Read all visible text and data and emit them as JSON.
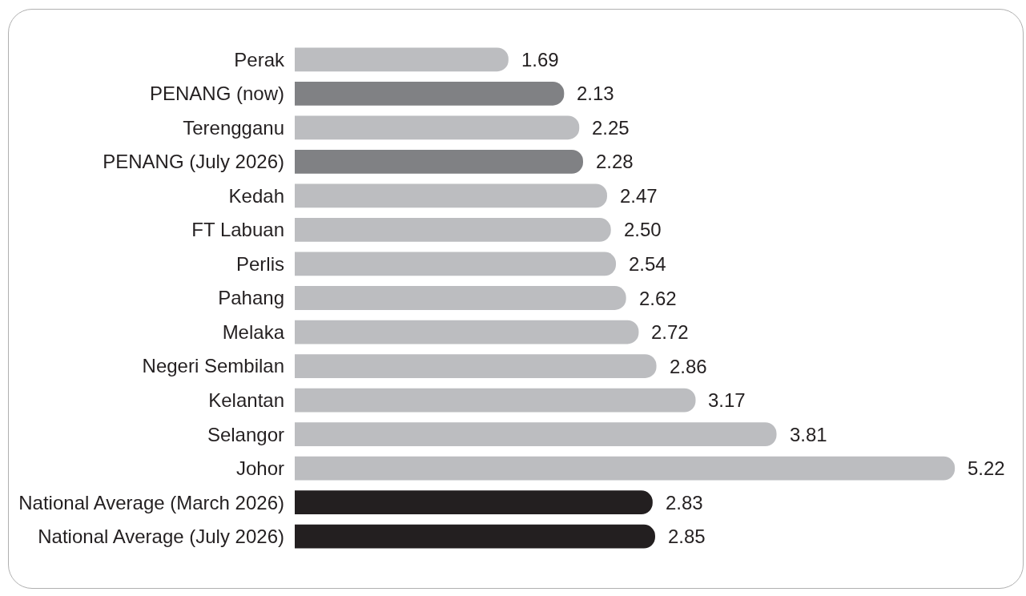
{
  "chart_data": {
    "type": "bar",
    "orientation": "horizontal",
    "categories": [
      "Perak",
      "PENANG (now)",
      "Terengganu",
      "PENANG (July 2026)",
      "Kedah",
      "FT Labuan",
      "Perlis",
      "Pahang",
      "Melaka",
      "Negeri Sembilan",
      "Kelantan",
      "Selangor",
      "Johor",
      "National Average (March 2026)",
      "National Average (July 2026)"
    ],
    "values": [
      1.69,
      2.13,
      2.25,
      2.28,
      2.47,
      2.5,
      2.54,
      2.62,
      2.72,
      2.86,
      3.17,
      3.81,
      5.22,
      2.83,
      2.85
    ],
    "value_labels": [
      "1.69",
      "2.13",
      "2.25",
      "2.28",
      "2.47",
      "2.50",
      "2.54",
      "2.62",
      "2.72",
      "2.86",
      "3.17",
      "3.81",
      "5.22",
      "2.83",
      "2.85"
    ],
    "colors": [
      "#bcbdc0",
      "#808184",
      "#bcbdc0",
      "#808184",
      "#bcbdc0",
      "#bcbdc0",
      "#bcbdc0",
      "#bcbdc0",
      "#bcbdc0",
      "#bcbdc0",
      "#bcbdc0",
      "#bcbdc0",
      "#bcbdc0",
      "#231f20",
      "#231f20"
    ]
  }
}
